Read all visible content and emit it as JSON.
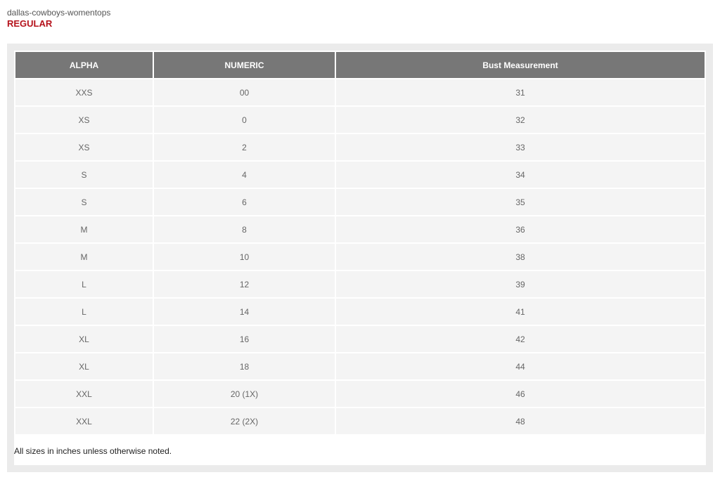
{
  "page": {
    "title": "dallas-cowboys-womentops",
    "subtitle": "REGULAR"
  },
  "table": {
    "headers": [
      "ALPHA",
      "NUMERIC",
      "Bust Measurement"
    ],
    "rows": [
      [
        "XXS",
        "00",
        "31"
      ],
      [
        "XS",
        "0",
        "32"
      ],
      [
        "XS",
        "2",
        "33"
      ],
      [
        "S",
        "4",
        "34"
      ],
      [
        "S",
        "6",
        "35"
      ],
      [
        "M",
        "8",
        "36"
      ],
      [
        "M",
        "10",
        "38"
      ],
      [
        "L",
        "12",
        "39"
      ],
      [
        "L",
        "14",
        "41"
      ],
      [
        "XL",
        "16",
        "42"
      ],
      [
        "XL",
        "18",
        "44"
      ],
      [
        "XXL",
        "20 (1X)",
        "46"
      ],
      [
        "XXL",
        "22 (2X)",
        "48"
      ]
    ]
  },
  "note": "All sizes in inches unless otherwise noted.",
  "colors": {
    "accent": "#b5121b",
    "header": "#777777"
  }
}
